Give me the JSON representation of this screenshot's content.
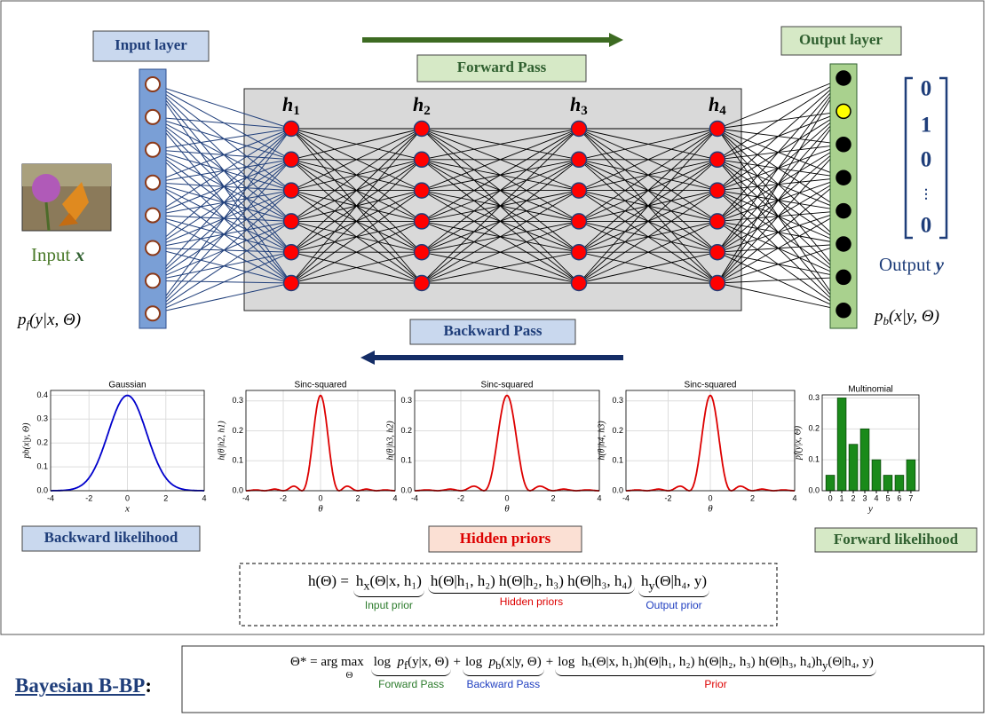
{
  "input_layer": "Input layer",
  "output_layer": "Output layer",
  "forward_pass": "Forward Pass",
  "backward_pass": "Backward Pass",
  "hidden_labels": [
    {
      "base": "h",
      "sub": "1"
    },
    {
      "base": "h",
      "sub": "2"
    },
    {
      "base": "h",
      "sub": "3"
    },
    {
      "base": "h",
      "sub": "4"
    }
  ],
  "input": {
    "label": "Input",
    "symbol": "x"
  },
  "output": {
    "label": "Output",
    "symbol": "y",
    "vector": [
      "0",
      "1",
      "0",
      "⋮",
      "0"
    ]
  },
  "forward_likelihood_expr": {
    "p": "p",
    "sub": "f",
    "args": "(y|x, Θ)"
  },
  "backward_likelihood_expr": {
    "p": "p",
    "sub": "b",
    "args": "(x|y, Θ)"
  },
  "plots": [
    {
      "type": "gaussian",
      "title": "Gaussian",
      "xlabel": "x",
      "ylabel": "pb(x|y, Θ)",
      "xlim": [
        -4,
        4
      ],
      "ylim": [
        0,
        0.42
      ],
      "xticks": [
        -4,
        -2,
        0,
        2,
        4
      ],
      "yticks": [
        {
          "value": 0,
          "label": "0.0"
        },
        0.1,
        0.2,
        0.3,
        0.4
      ],
      "color": "#0000cc",
      "grid": true
    },
    {
      "type": "sinc2",
      "title": "Sinc-squared",
      "xlabel": "θ",
      "ylabel": "h(θ|h2, h1)",
      "xlim": [
        -4,
        4
      ],
      "ylim": [
        0,
        0.335
      ],
      "xticks": [
        -4,
        -2,
        0,
        2,
        4
      ],
      "yticks": [
        {
          "value": 0,
          "label": "0.0"
        },
        0.1,
        0.2,
        0.3
      ],
      "color": "#dd0000",
      "grid": true
    },
    {
      "type": "sinc2",
      "title": "Sinc-squared",
      "xlabel": "θ",
      "ylabel": "h(θ|h3, h2)",
      "xlim": [
        -4,
        4
      ],
      "ylim": [
        0,
        0.335
      ],
      "xticks": [
        -4,
        -2,
        0,
        2,
        4
      ],
      "yticks": [
        {
          "value": 0,
          "label": "0.0"
        },
        0.1,
        0.2,
        0.3
      ],
      "color": "#dd0000",
      "grid": true
    },
    {
      "type": "sinc2",
      "title": "Sinc-squared",
      "xlabel": "θ",
      "ylabel": "h(θ|h4, h3)",
      "xlim": [
        -4,
        4
      ],
      "ylim": [
        0,
        0.335
      ],
      "xticks": [
        -4,
        -2,
        0,
        2,
        4
      ],
      "yticks": [
        {
          "value": 0,
          "label": "0.0"
        },
        0.1,
        0.2,
        0.3
      ],
      "color": "#dd0000",
      "grid": true
    },
    {
      "type": "bar",
      "title": "Multinomial",
      "xlabel": "y",
      "ylabel": "pf(y|x, Θ)",
      "x": [
        0,
        1,
        2,
        3,
        4,
        5,
        6,
        7
      ],
      "values": [
        0.05,
        0.3,
        0.15,
        0.2,
        0.1,
        0.05,
        0.05,
        0.1
      ],
      "xlim": [
        -0.7,
        7.7
      ],
      "ylim": [
        0,
        0.31
      ],
      "xticks": [
        0,
        1,
        2,
        3,
        4,
        5,
        6,
        7
      ],
      "yticks": [
        {
          "value": 0,
          "label": "0.0"
        },
        0.1,
        0.2,
        0.3
      ],
      "color": "#1a8a1a",
      "grid": true
    }
  ],
  "captions": {
    "backward_likelihood": "Backward likelihood",
    "hidden_priors": "Hidden priors",
    "forward_likelihood": "Forward likelihood"
  },
  "prior_formula": {
    "lhs": "h(Θ) =",
    "input_prior": {
      "f": "h",
      "sub": "x",
      "args": "(Θ|x, h₁)",
      "label": "Input prior"
    },
    "hidden": {
      "text": "h(Θ|h₁, h₂)  h(Θ|h₂, h₃)  h(Θ|h₃, h₄)",
      "label": "Hidden priors"
    },
    "output_prior": {
      "f": "h",
      "sub": "y",
      "args": "(Θ|h₄, y)",
      "label": "Output prior"
    }
  },
  "objective": {
    "title": "Bayesian B-BP",
    "colon": ":",
    "lhs": "Θ* = arg max",
    "under": "Θ",
    "plus": "+",
    "forward": {
      "log": "log",
      "f": "p",
      "sub": "f",
      "args": "(y|x, Θ)",
      "label": "Forward Pass"
    },
    "backward": {
      "log": "log",
      "f": "p",
      "sub": "b",
      "args": "(x|y, Θ)",
      "label": "Backward Pass"
    },
    "prior": {
      "log": "log",
      "body": "hₓ(Θ|x, h₁)h(Θ|h₁, h₂) h(Θ|h₂, h₃) h(Θ|h₃, h₄)",
      "f": "h",
      "sub": "y",
      "args": "(Θ|h₄, y)",
      "label": "Prior"
    }
  }
}
